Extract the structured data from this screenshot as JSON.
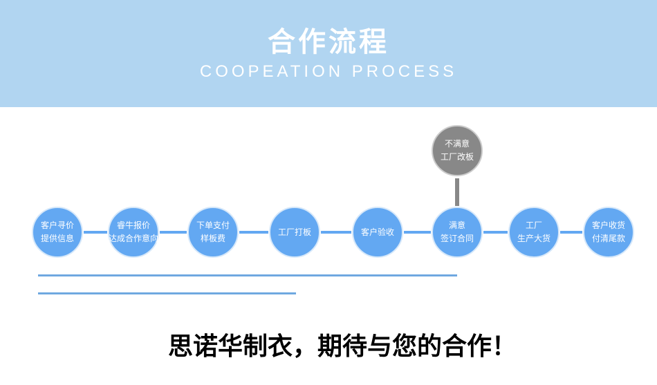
{
  "header": {
    "title": "合作流程",
    "subtitle": "COOPEATION PROCESS"
  },
  "steps": [
    {
      "lines": [
        "客户寻价",
        "提供信息"
      ]
    },
    {
      "lines": [
        "睿牛报价",
        "达成合作意向"
      ]
    },
    {
      "lines": [
        "下单支付",
        "样板费"
      ]
    },
    {
      "lines": [
        "工厂打板"
      ]
    },
    {
      "lines": [
        "客户验收"
      ]
    },
    {
      "lines": [
        "满意",
        "签订合同"
      ]
    },
    {
      "lines": [
        "工厂",
        "生产大货"
      ]
    },
    {
      "lines": [
        "客户收货",
        "付清尾款"
      ]
    }
  ],
  "branch": {
    "lines": [
      "不满意",
      "工厂改板"
    ]
  },
  "slogan": "思诺华制衣，期待与您的合作！",
  "colors": {
    "header": "#b1d5f1",
    "step": "#63a8f2",
    "branch": "#888888"
  }
}
